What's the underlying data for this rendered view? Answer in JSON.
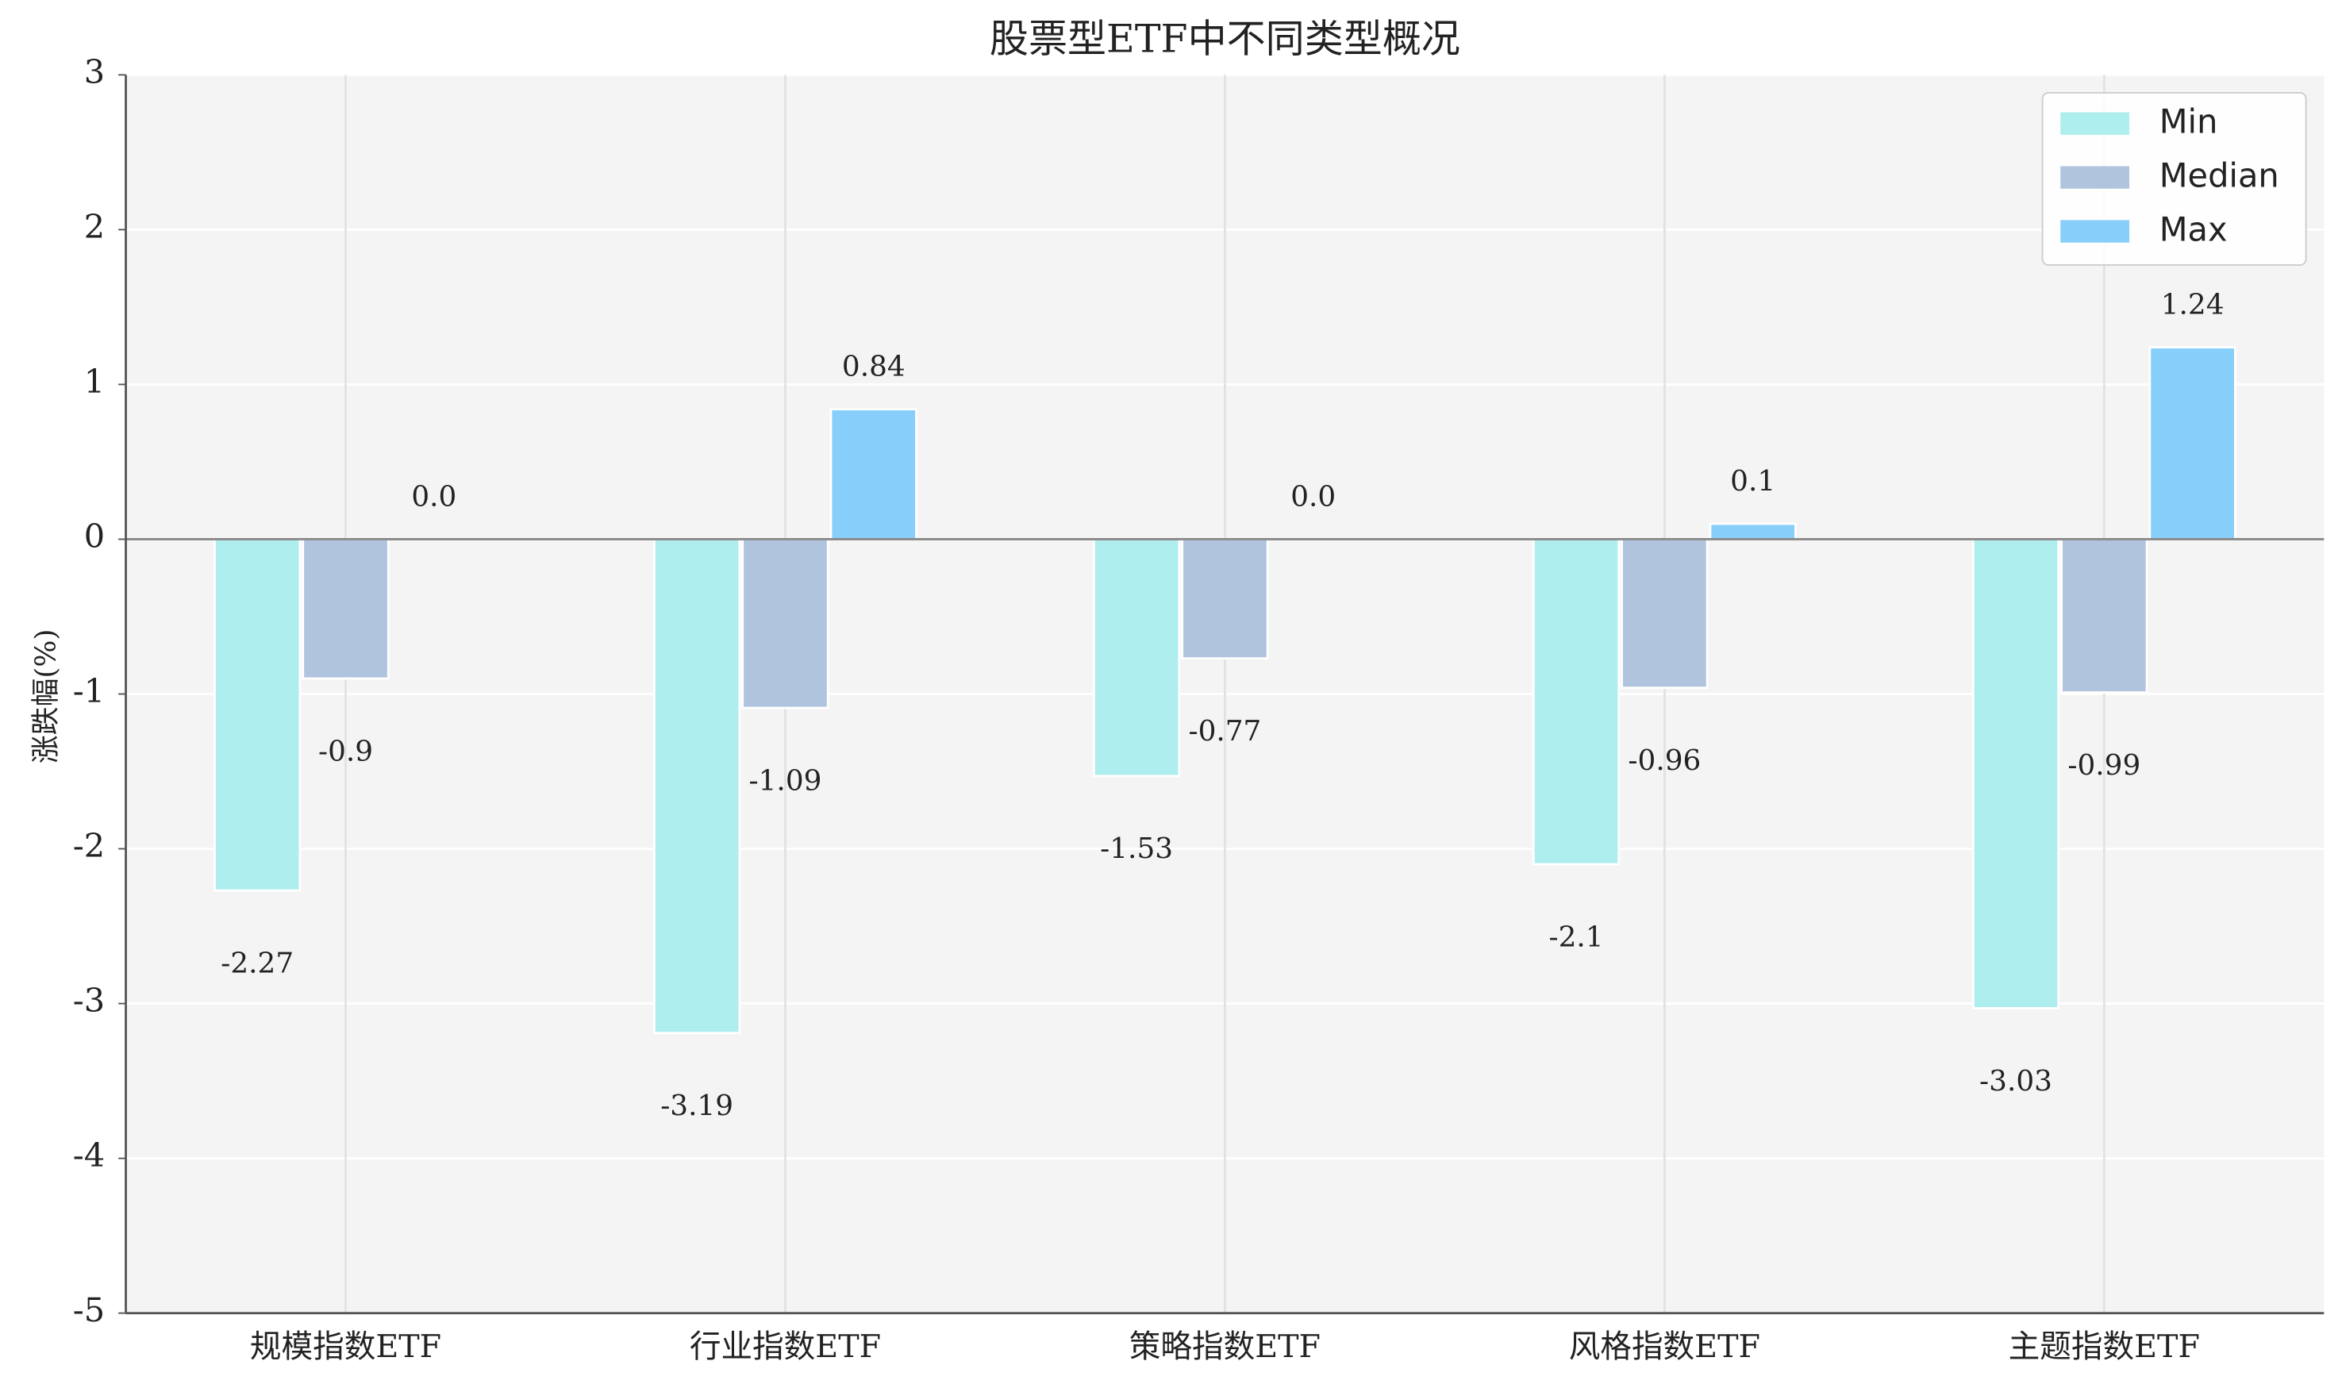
{
  "chart_data": {
    "type": "bar",
    "title": "股票型ETF中不同类型概况",
    "y_label": "涨跌幅(%)",
    "categories": [
      "规模指数ETF",
      "行业指数ETF",
      "策略指数ETF",
      "风格指数ETF",
      "主题指数ETF"
    ],
    "series": [
      {
        "name": "Min",
        "color": "#afeeee",
        "values": [
          -2.27,
          -3.19,
          -1.53,
          -2.1,
          -3.03
        ]
      },
      {
        "name": "Median",
        "color": "#b0c4de",
        "values": [
          -0.9,
          -1.09,
          -0.77,
          -0.96,
          -0.99
        ]
      },
      {
        "name": "Max",
        "color": "#87cefa",
        "values": [
          0,
          0.84,
          0,
          0.1,
          1.24
        ],
        "value_labels": [
          "0.0",
          "0.84",
          "0.0",
          "0.1",
          "1.24"
        ]
      }
    ],
    "ylim": [
      -5,
      3
    ],
    "yticks": [
      -5,
      -4,
      -3,
      -2,
      -1,
      0,
      1,
      2,
      3
    ],
    "grid": true,
    "legend": "upper right"
  }
}
